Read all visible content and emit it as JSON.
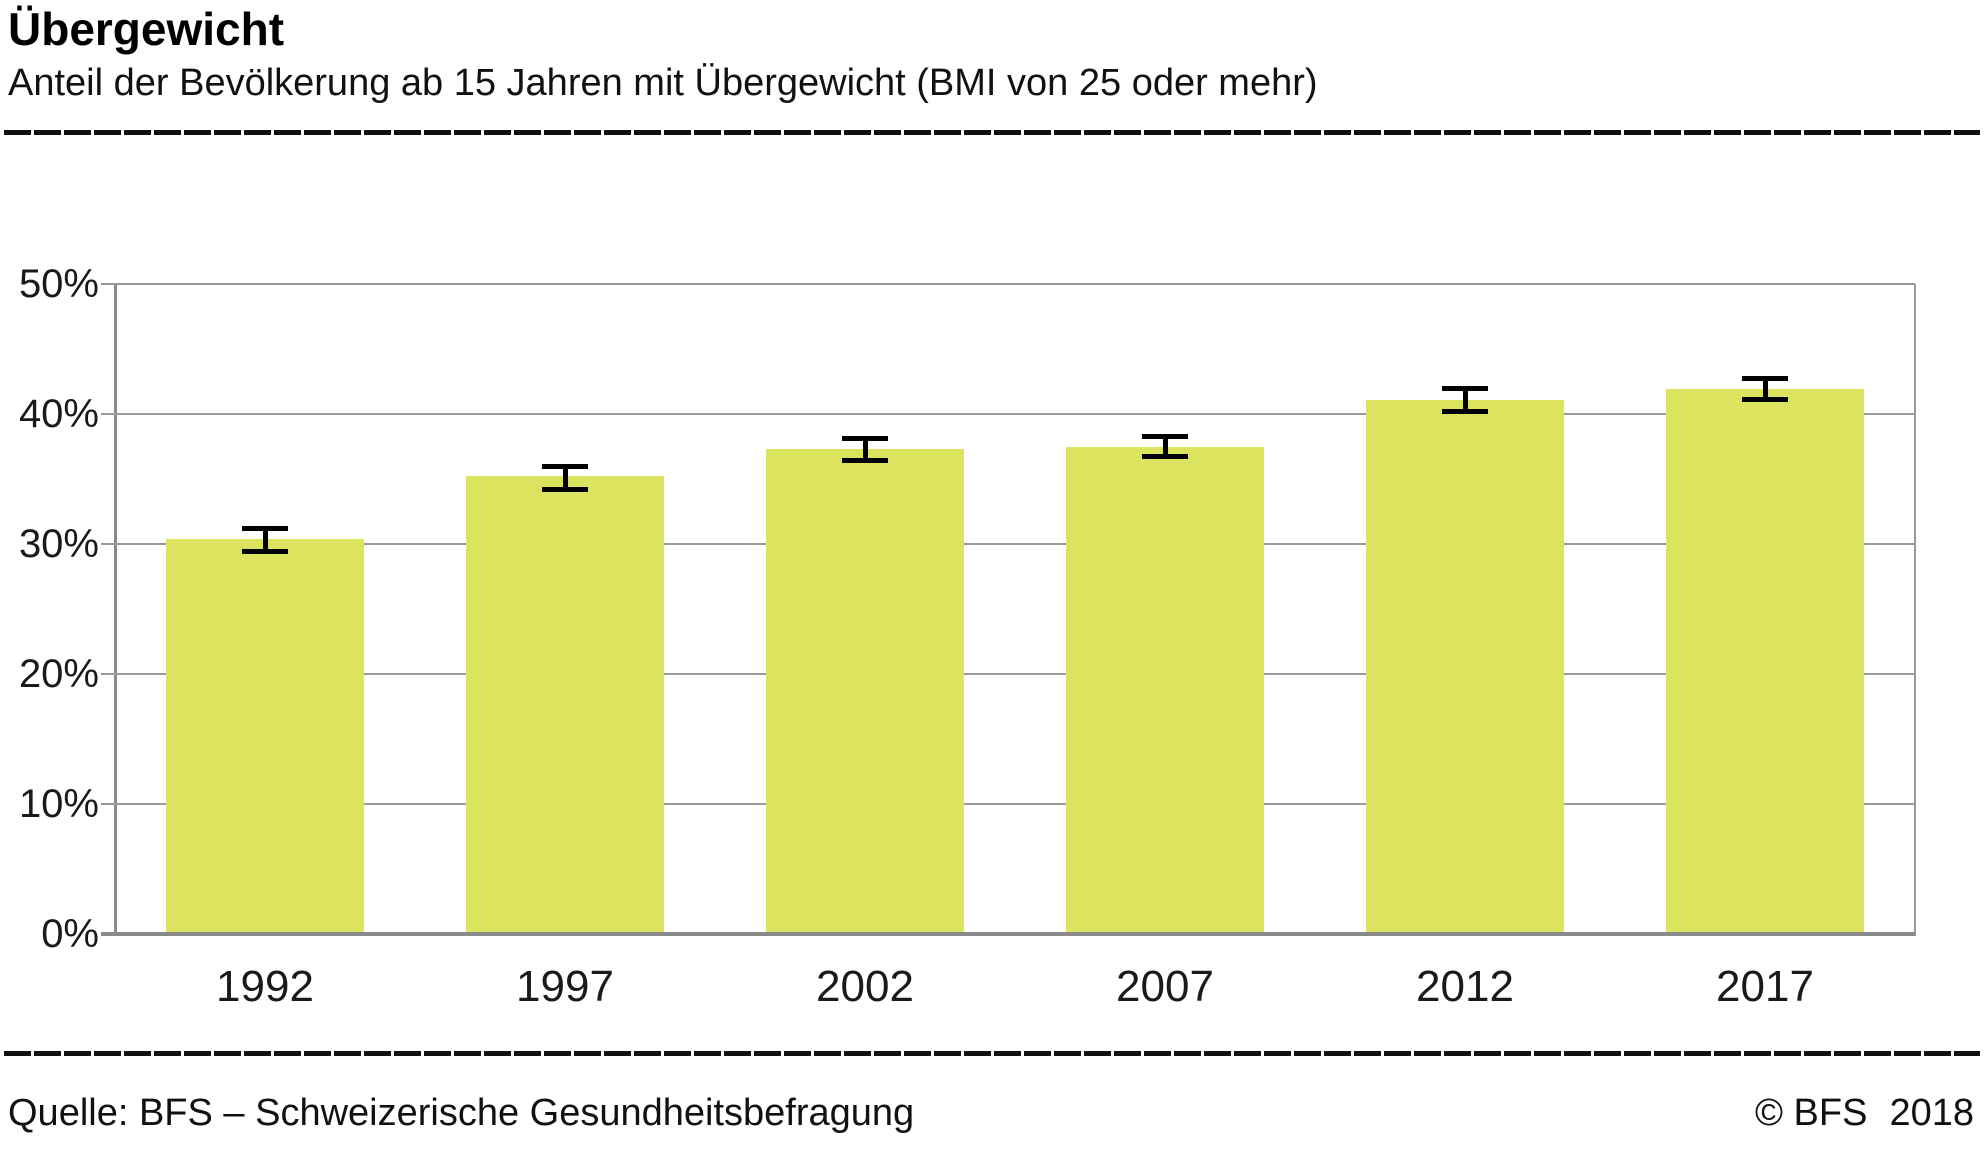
{
  "header": {
    "title": "Übergewicht",
    "subtitle": "Anteil der Bevölkerung ab 15 Jahren mit Übergewicht (BMI von 25 oder mehr)"
  },
  "footer": {
    "source": "Quelle: BFS – Schweizerische Gesundheitsbefragung",
    "copyright": "© BFS",
    "year": "2018"
  },
  "colors": {
    "bar": "#dce35e",
    "grid": "#9a9a9a",
    "axis": "#8a8a8a",
    "error_bar": "#000000",
    "rule": "#111111"
  },
  "chart_data": {
    "type": "bar",
    "title": "Übergewicht",
    "subtitle": "Anteil der Bevölkerung ab 15 Jahren mit Übergewicht (BMI von 25 oder mehr)",
    "categories": [
      "1992",
      "1997",
      "2002",
      "2007",
      "2012",
      "2017"
    ],
    "values": [
      30.4,
      35.2,
      37.3,
      37.5,
      41.1,
      41.9
    ],
    "error_low": [
      29.4,
      34.2,
      36.4,
      36.7,
      40.2,
      41.1
    ],
    "error_high": [
      31.2,
      36.0,
      38.1,
      38.3,
      42.0,
      42.7
    ],
    "value_unit": "%",
    "xlabel": "",
    "ylabel": "",
    "ylim": [
      0,
      50
    ],
    "yticks": [
      0,
      10,
      20,
      30,
      40,
      50
    ],
    "ytick_suffix": "%",
    "grid": true,
    "legend_position": "none"
  }
}
